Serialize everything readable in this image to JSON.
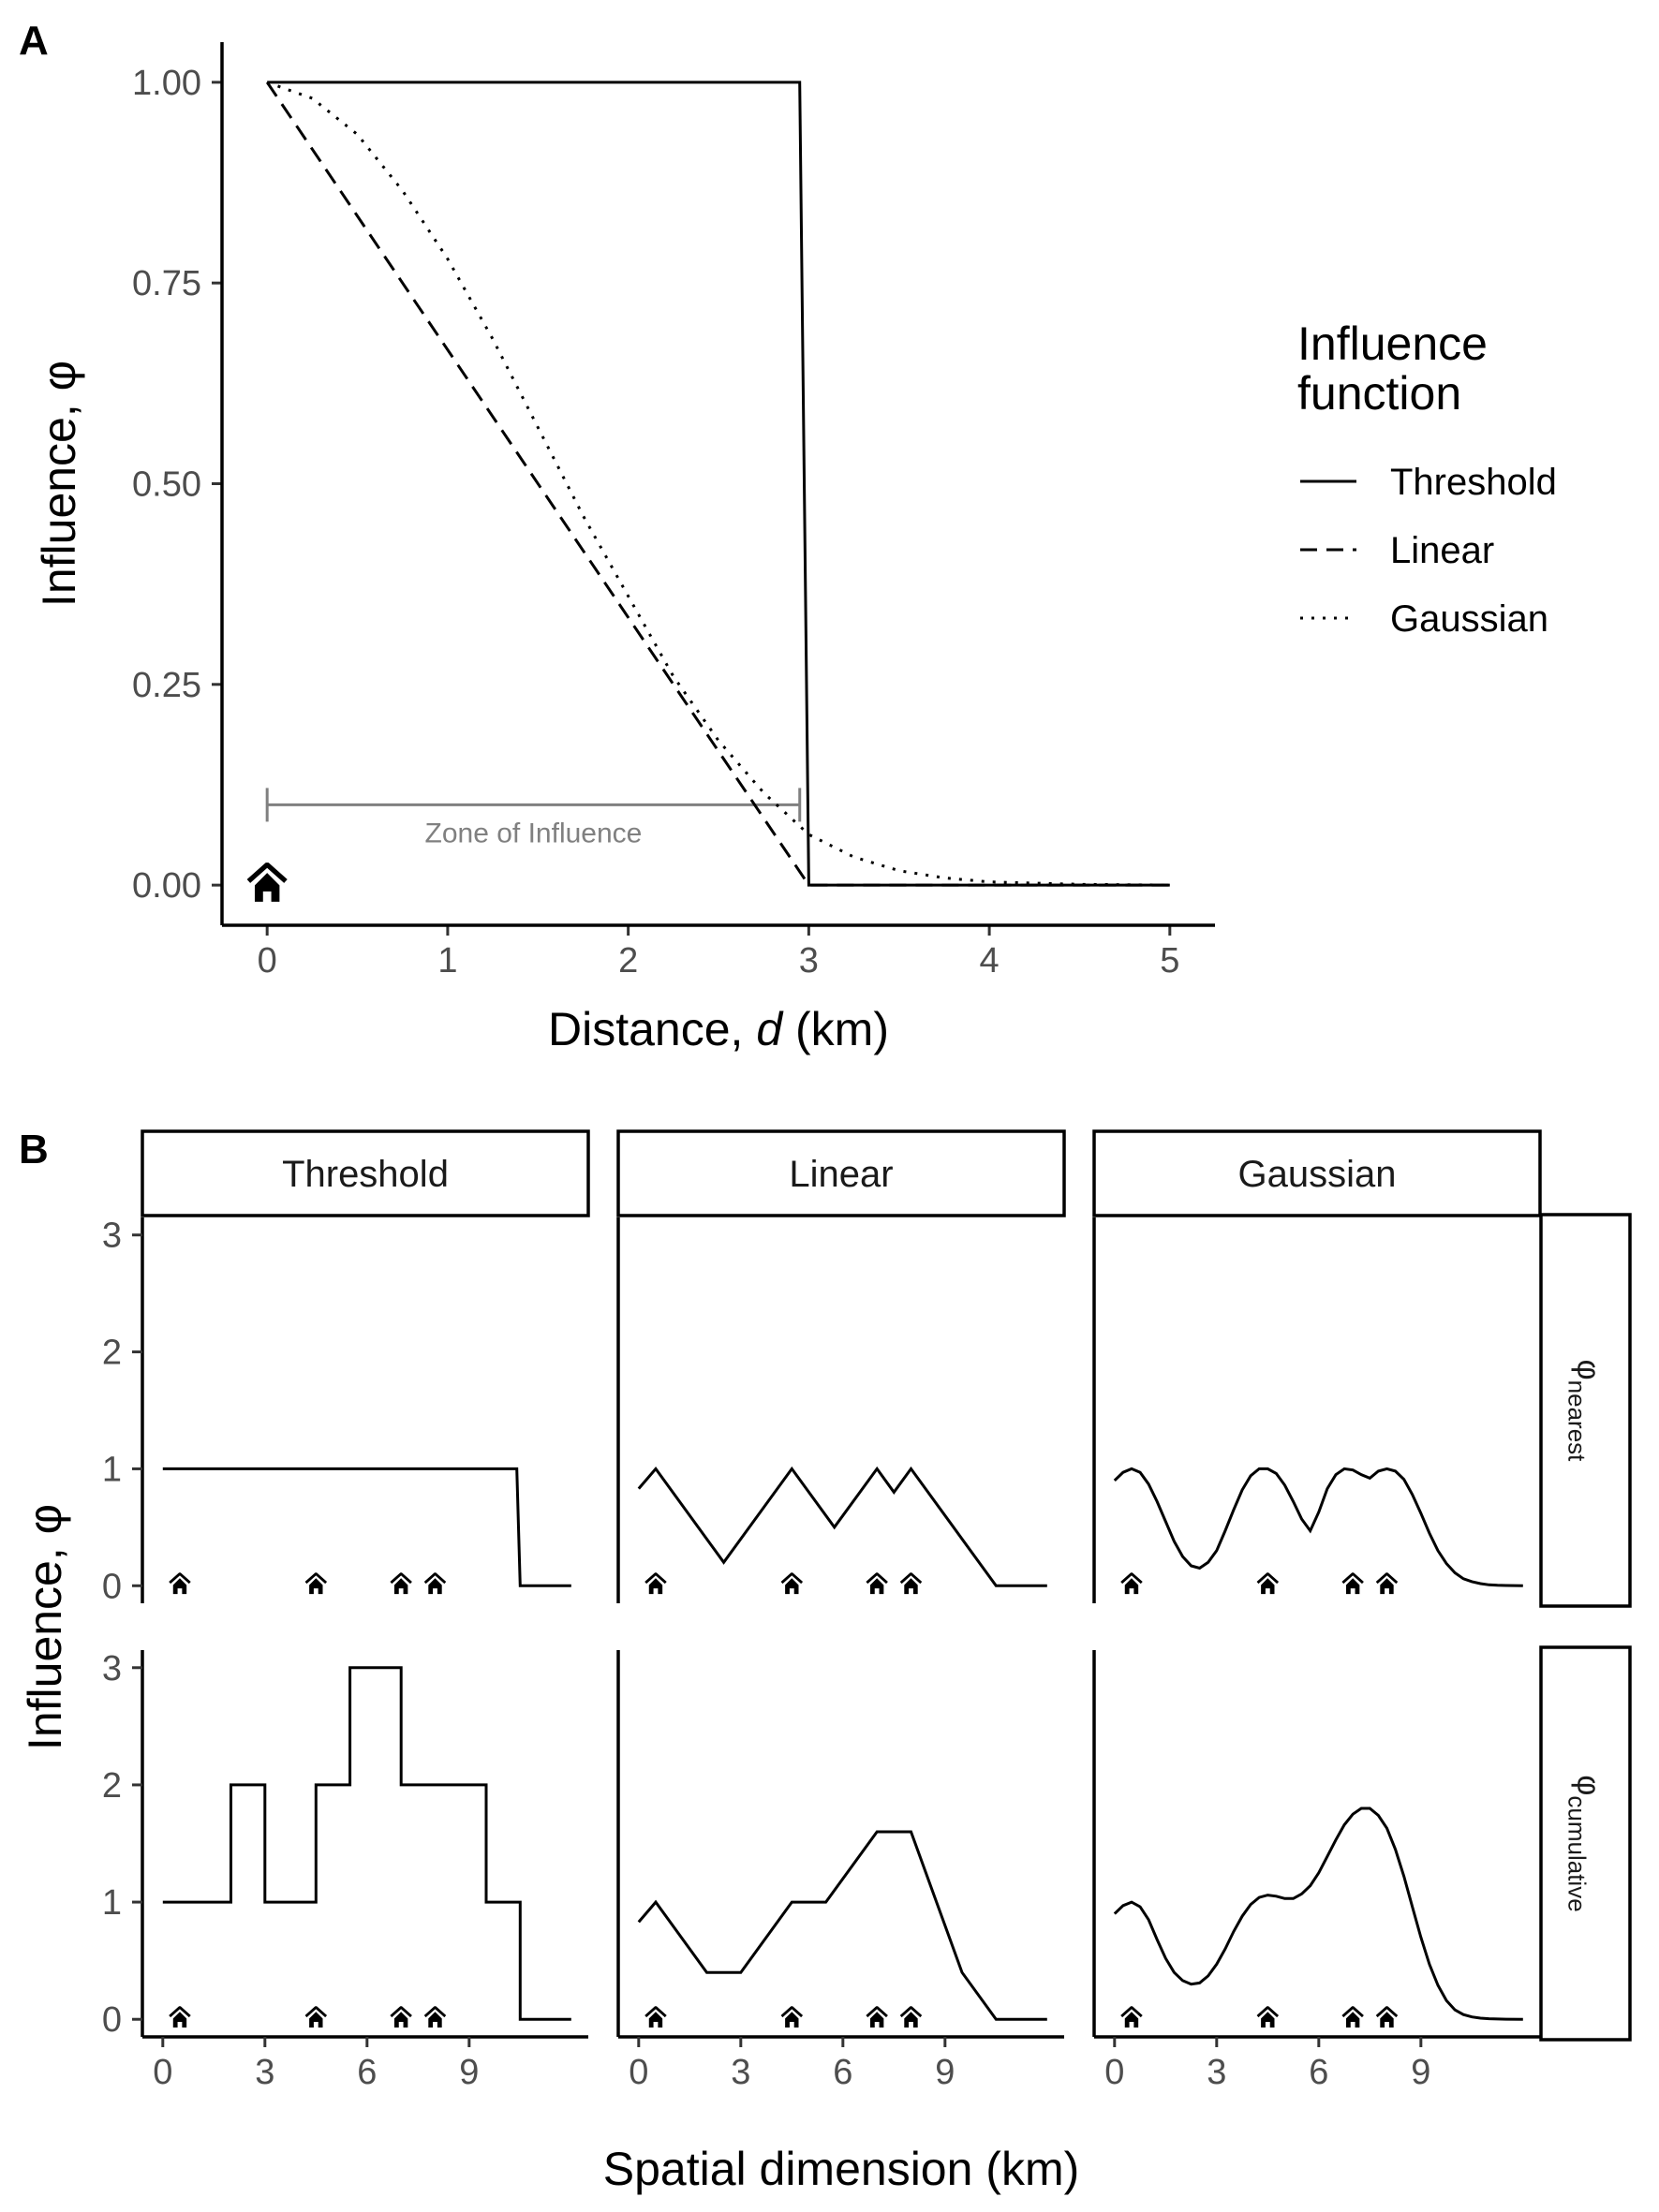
{
  "panel_labels": {
    "a": "A",
    "b": "B"
  },
  "chart_data": [
    {
      "panel": "A",
      "type": "line",
      "xlabel_parts": [
        "Distance, ",
        "d",
        " (km)"
      ],
      "ylabel": "Influence, φ",
      "xlim": [
        -0.25,
        5.25
      ],
      "ylim": [
        -0.05,
        1.05
      ],
      "x_ticks": [
        0,
        1,
        2,
        3,
        4,
        5
      ],
      "x_tick_labels": [
        "0",
        "1",
        "2",
        "3",
        "4",
        "5"
      ],
      "y_ticks": [
        0,
        0.25,
        0.5,
        0.75,
        1.0
      ],
      "y_tick_labels": [
        "0.00",
        "0.25",
        "0.50",
        "0.75",
        "1.00"
      ],
      "grid": false,
      "legend": {
        "title_lines": [
          "Influence",
          "function"
        ],
        "placement": "right",
        "entries": [
          {
            "name": "Threshold",
            "dash": "solid"
          },
          {
            "name": "Linear",
            "dash": "dashed"
          },
          {
            "name": "Gaussian",
            "dash": "dotted"
          }
        ]
      },
      "series": [
        {
          "name": "Threshold",
          "x": [
            0,
            2.95,
            3.0,
            5.0
          ],
          "y": [
            1,
            1,
            0,
            0
          ]
        },
        {
          "name": "Linear",
          "x": [
            0,
            3.0,
            5.0
          ],
          "y": [
            1,
            0,
            0
          ]
        },
        {
          "name": "Gaussian",
          "x": [
            0,
            0.25,
            0.5,
            0.75,
            1.0,
            1.25,
            1.5,
            1.75,
            2.0,
            2.25,
            2.5,
            2.75,
            3.0,
            3.25,
            3.5,
            3.75,
            4.0,
            4.5,
            5.0
          ],
          "y": [
            1.0,
            0.98,
            0.935,
            0.865,
            0.78,
            0.68,
            0.57,
            0.46,
            0.36,
            0.26,
            0.18,
            0.115,
            0.063,
            0.035,
            0.018,
            0.009,
            0.004,
            0.001,
            0.0
          ]
        }
      ],
      "annotations": {
        "zone_text": "Zone of Influence",
        "zone_range": [
          0,
          2.95
        ],
        "zone_y": 0.1,
        "home_icon": "house-icon",
        "home_x": 0,
        "zone_color": "#808080"
      }
    },
    {
      "panel": "B",
      "type": "line",
      "xlabel": "Spatial dimension (km)",
      "ylabel": "Influence, φ",
      "xlim": [
        -0.6,
        12.5
      ],
      "x_ticks": [
        0,
        3,
        6,
        9
      ],
      "x_tick_labels": [
        "0",
        "3",
        "6",
        "9"
      ],
      "y_ticks": [
        0,
        1,
        2,
        3
      ],
      "y_tick_labels": [
        "0",
        "1",
        "2",
        "3"
      ],
      "grid": false,
      "columns": [
        "Threshold",
        "Linear",
        "Gaussian"
      ],
      "rows": [
        {
          "symbol": "φ",
          "subscript": "nearest"
        },
        {
          "symbol": "φ",
          "subscript": "cumulative"
        }
      ],
      "home_positions": [
        0.5,
        4.5,
        7.0,
        8.0
      ],
      "home_icon": "house-icon",
      "panels": [
        {
          "column": "Threshold",
          "row": "nearest",
          "x": [
            0,
            10.4,
            10.5,
            12
          ],
          "y": [
            1,
            1,
            0,
            0
          ]
        },
        {
          "column": "Linear",
          "row": "nearest",
          "x": [
            0,
            0.5,
            2.5,
            4.5,
            5.75,
            7.0,
            7.5,
            8.0,
            10.5,
            12
          ],
          "y": [
            0.83,
            1,
            0.2,
            1,
            0.5,
            1,
            0.8,
            1,
            0,
            0
          ]
        },
        {
          "column": "Gaussian",
          "row": "nearest",
          "x": [
            0,
            0.25,
            0.5,
            0.75,
            1.0,
            1.25,
            1.5,
            1.75,
            2.0,
            2.25,
            2.5,
            2.75,
            3.0,
            3.25,
            3.5,
            3.75,
            4.0,
            4.25,
            4.5,
            4.75,
            5.0,
            5.25,
            5.5,
            5.75,
            6.0,
            6.25,
            6.5,
            6.75,
            7.0,
            7.25,
            7.5,
            7.75,
            8.0,
            8.25,
            8.5,
            8.75,
            9.0,
            9.25,
            9.5,
            9.75,
            10.0,
            10.25,
            10.5,
            10.75,
            11.0,
            11.25,
            11.5,
            12
          ],
          "y": [
            0.9,
            0.97,
            1.0,
            0.97,
            0.87,
            0.72,
            0.55,
            0.38,
            0.25,
            0.17,
            0.15,
            0.2,
            0.3,
            0.47,
            0.65,
            0.82,
            0.94,
            1.0,
            1.0,
            0.96,
            0.86,
            0.72,
            0.57,
            0.47,
            0.63,
            0.83,
            0.95,
            1.0,
            0.99,
            0.95,
            0.92,
            0.98,
            1.0,
            0.98,
            0.91,
            0.78,
            0.62,
            0.45,
            0.3,
            0.19,
            0.11,
            0.06,
            0.035,
            0.018,
            0.008,
            0.004,
            0.002,
            0.0
          ]
        },
        {
          "column": "Threshold",
          "row": "cumulative",
          "x": [
            0,
            2.0,
            2.0,
            3.0,
            3.0,
            4.5,
            4.5,
            5.5,
            5.5,
            7.0,
            7.0,
            9.5,
            9.5,
            10.5,
            10.5,
            12
          ],
          "y": [
            1,
            1,
            2,
            2,
            1,
            1,
            2,
            2,
            3,
            3,
            2,
            2,
            1,
            1,
            0,
            0
          ]
        },
        {
          "column": "Linear",
          "row": "cumulative",
          "x": [
            0,
            0.5,
            2.0,
            3.0,
            4.5,
            5.5,
            7.0,
            8.0,
            9.5,
            10.5,
            12
          ],
          "y": [
            0.83,
            1,
            0.4,
            0.4,
            1,
            1,
            1.6,
            1.6,
            0.4,
            0,
            0
          ]
        },
        {
          "column": "Gaussian",
          "row": "cumulative",
          "x": [
            0,
            0.25,
            0.5,
            0.75,
            1.0,
            1.25,
            1.5,
            1.75,
            2.0,
            2.25,
            2.5,
            2.75,
            3.0,
            3.25,
            3.5,
            3.75,
            4.0,
            4.25,
            4.5,
            4.75,
            5.0,
            5.25,
            5.5,
            5.75,
            6.0,
            6.25,
            6.5,
            6.75,
            7.0,
            7.25,
            7.5,
            7.75,
            8.0,
            8.25,
            8.5,
            8.75,
            9.0,
            9.25,
            9.5,
            9.75,
            10.0,
            10.25,
            10.5,
            10.75,
            11.0,
            11.5,
            12
          ],
          "y": [
            0.9,
            0.97,
            1.0,
            0.96,
            0.85,
            0.68,
            0.52,
            0.4,
            0.33,
            0.3,
            0.31,
            0.37,
            0.47,
            0.6,
            0.75,
            0.88,
            0.98,
            1.04,
            1.06,
            1.05,
            1.03,
            1.03,
            1.07,
            1.14,
            1.25,
            1.39,
            1.53,
            1.66,
            1.75,
            1.8,
            1.8,
            1.74,
            1.63,
            1.45,
            1.22,
            0.96,
            0.7,
            0.47,
            0.29,
            0.16,
            0.08,
            0.04,
            0.02,
            0.01,
            0.005,
            0.001,
            0.0
          ]
        }
      ]
    }
  ]
}
